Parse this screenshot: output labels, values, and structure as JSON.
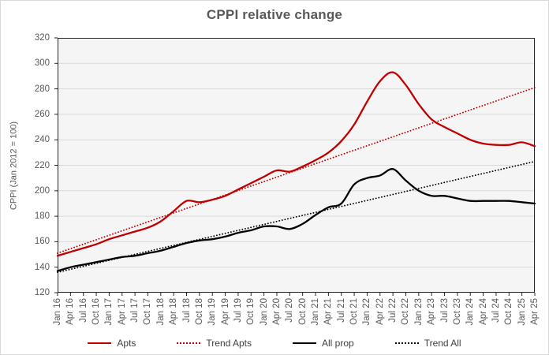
{
  "title": "CPPI relative change",
  "y_axis": {
    "title": "CPPI (Jan 2012 = 100)",
    "ticks": [
      320,
      300,
      280,
      260,
      240,
      220,
      200,
      180,
      160,
      140,
      120
    ]
  },
  "chart_data": {
    "type": "line",
    "title": "CPPI relative change",
    "xlabel": "",
    "ylabel": "CPPI (Jan 2012 = 100)",
    "ylim": [
      120,
      320
    ],
    "grid": true,
    "legend_position": "bottom",
    "categories": [
      "Jan 16",
      "Apr 16",
      "Jul 16",
      "Oct 16",
      "Jan 17",
      "Apr 17",
      "Jul 17",
      "Oct 17",
      "Jan 18",
      "Apr 18",
      "Jul 18",
      "Oct 18",
      "Jan 19",
      "Apr 19",
      "Jul 19",
      "Oct 19",
      "Jan 20",
      "Apr 20",
      "Jul 20",
      "Oct 20",
      "Jan 21",
      "Apr 21",
      "Jul 21",
      "Oct 21",
      "Jan 22",
      "Apr 22",
      "Jul 22",
      "Oct 22",
      "Jan 23",
      "Apr 23",
      "Jul 23",
      "Oct 23",
      "Jan 24",
      "Apr 24",
      "Jul 24",
      "Oct 24",
      "Jan 25",
      "Apr 25"
    ],
    "series": [
      {
        "name": "Apts",
        "color": "#C00000",
        "style": "solid",
        "values": [
          149,
          152,
          155,
          158,
          162,
          165,
          168,
          171,
          176,
          184,
          192,
          191,
          193,
          196,
          201,
          206,
          211,
          216,
          215,
          219,
          224,
          230,
          239,
          252,
          270,
          286,
          293,
          283,
          268,
          256,
          250,
          245,
          240,
          237,
          236,
          236,
          238,
          235
        ]
      },
      {
        "name": "Trend Apts",
        "color": "#C00000",
        "style": "dotted",
        "linear": [
          151,
          281
        ]
      },
      {
        "name": "All prop",
        "color": "#000000",
        "style": "solid",
        "values": [
          137,
          140,
          142,
          144,
          146,
          148,
          149,
          151,
          153,
          156,
          159,
          161,
          162,
          164,
          167,
          169,
          172,
          172,
          170,
          174,
          181,
          187,
          190,
          205,
          210,
          212,
          217,
          208,
          200,
          196,
          196,
          194,
          192,
          192,
          192,
          192,
          191,
          190
        ]
      },
      {
        "name": "Trend All",
        "color": "#000000",
        "style": "dotted",
        "linear": [
          136,
          223
        ]
      }
    ]
  },
  "colors": {
    "apts": "#C00000",
    "all_prop": "#000000",
    "gridline": "#D9D9D9",
    "axis": "#262626",
    "label_text": "#595959"
  }
}
